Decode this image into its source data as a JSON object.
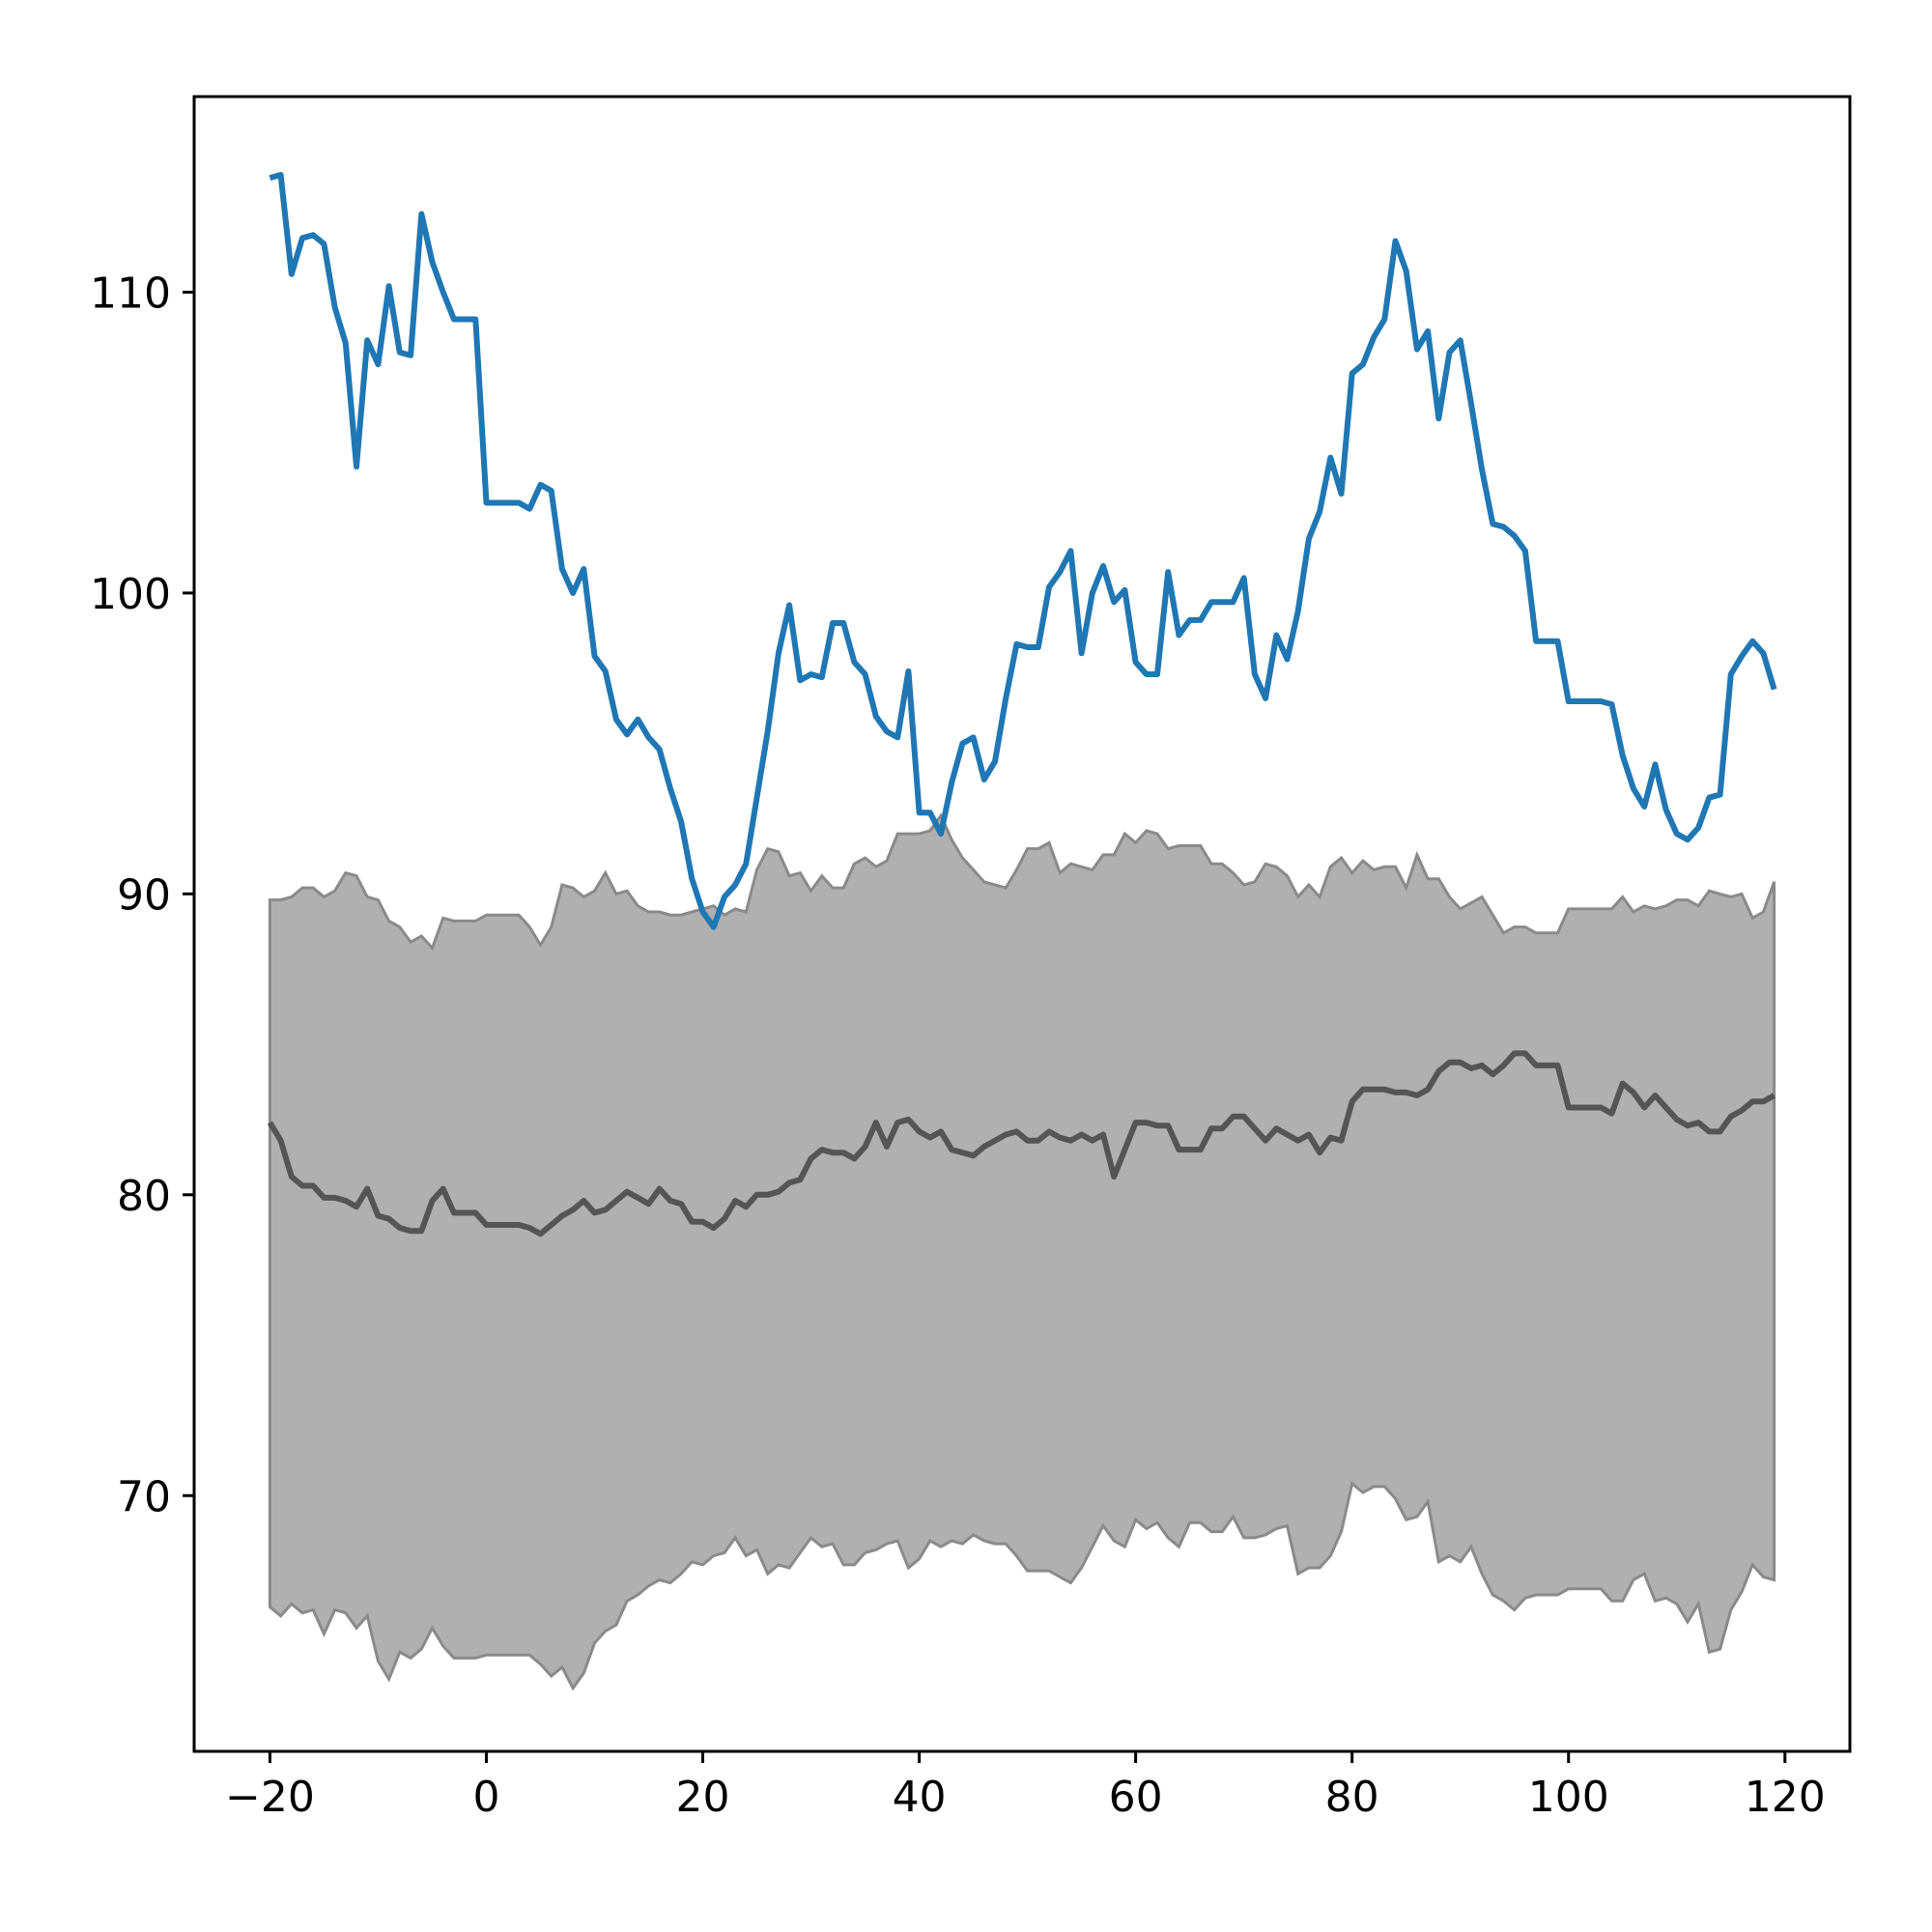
{
  "chart_data": {
    "type": "line",
    "title": "",
    "xlabel": "",
    "ylabel": "",
    "xlim": [
      -27,
      126
    ],
    "ylim": [
      61.5,
      116.5
    ],
    "x_ticks": [
      -20,
      0,
      20,
      40,
      60,
      80,
      100,
      120
    ],
    "x_tick_labels": [
      "−20",
      "0",
      "20",
      "40",
      "60",
      "80",
      "100",
      "120"
    ],
    "y_ticks": [
      70,
      80,
      90,
      100,
      110
    ],
    "y_tick_labels": [
      "70",
      "80",
      "90",
      "100",
      "110"
    ],
    "grid": false,
    "legend": "none",
    "x": [
      -20,
      -19,
      -18,
      -17,
      -16,
      -15,
      -14,
      -13,
      -12,
      -11,
      -10,
      -9,
      -8,
      -7,
      -6,
      -5,
      -4,
      -3,
      -2,
      -1,
      0,
      1,
      2,
      3,
      4,
      5,
      6,
      7,
      8,
      9,
      10,
      11,
      12,
      13,
      14,
      15,
      16,
      17,
      18,
      19,
      20,
      21,
      22,
      23,
      24,
      25,
      26,
      27,
      28,
      29,
      30,
      31,
      32,
      33,
      34,
      35,
      36,
      37,
      38,
      39,
      40,
      41,
      42,
      43,
      44,
      45,
      46,
      47,
      48,
      49,
      50,
      51,
      52,
      53,
      54,
      55,
      56,
      57,
      58,
      59,
      60,
      61,
      62,
      63,
      64,
      65,
      66,
      67,
      68,
      69,
      70,
      71,
      72,
      73,
      74,
      75,
      76,
      77,
      78,
      79,
      80,
      81,
      82,
      83,
      84,
      85,
      86,
      87,
      88,
      89,
      90,
      91,
      92,
      93,
      94,
      95,
      96,
      97,
      98,
      99,
      100,
      101,
      102,
      103,
      104,
      105,
      106,
      107,
      108,
      109,
      110,
      111,
      112,
      113,
      114,
      115,
      116,
      117,
      118,
      119
    ],
    "series": [
      {
        "role": "observed",
        "color": "#1f77b4",
        "values": [
          113.8,
          113.9,
          110.6,
          111.8,
          111.9,
          111.6,
          109.5,
          108.3,
          104.2,
          108.4,
          107.6,
          110.2,
          108.0,
          107.9,
          112.6,
          111.0,
          110.0,
          109.1,
          109.1,
          109.1,
          103.0,
          103.0,
          103.0,
          103.0,
          102.8,
          103.6,
          103.4,
          100.8,
          100.0,
          100.8,
          97.9,
          97.4,
          95.8,
          95.3,
          95.8,
          95.2,
          94.8,
          93.5,
          92.4,
          90.5,
          89.4,
          88.9,
          89.9,
          90.3,
          91.0,
          93.2,
          95.4,
          98.0,
          99.6,
          97.1,
          97.3,
          97.2,
          99.0,
          99.0,
          97.7,
          97.3,
          95.9,
          95.4,
          95.2,
          97.4,
          92.7,
          92.7,
          92.0,
          93.7,
          95.0,
          95.2,
          93.8,
          94.4,
          96.5,
          98.3,
          98.2,
          98.2,
          100.2,
          100.7,
          101.4,
          98.0,
          100.0,
          100.9,
          99.7,
          100.1,
          97.7,
          97.3,
          97.3,
          100.7,
          98.6,
          99.1,
          99.1,
          99.7,
          99.7,
          99.7,
          100.5,
          97.3,
          96.5,
          98.6,
          97.8,
          99.4,
          101.8,
          102.7,
          104.5,
          103.3,
          107.3,
          107.6,
          108.5,
          109.1,
          111.7,
          110.7,
          108.1,
          108.7,
          105.8,
          108.0,
          108.4,
          106.3,
          104.1,
          102.3,
          102.2,
          101.9,
          101.4,
          98.4,
          98.4,
          98.4,
          96.4,
          96.4,
          96.4,
          96.4,
          96.3,
          94.6,
          93.5,
          92.9,
          94.3,
          92.8,
          92.0,
          91.8,
          92.2,
          93.2,
          93.3,
          97.3,
          97.9,
          98.4,
          98.0,
          96.8
        ]
      },
      {
        "role": "center",
        "color": "#555555",
        "values": [
          82.4,
          81.8,
          80.6,
          80.3,
          80.3,
          79.9,
          79.9,
          79.8,
          79.6,
          80.2,
          79.3,
          79.2,
          78.9,
          78.8,
          78.8,
          79.8,
          80.2,
          79.4,
          79.4,
          79.4,
          79.0,
          79.0,
          79.0,
          79.0,
          78.9,
          78.7,
          79.0,
          79.3,
          79.5,
          79.8,
          79.4,
          79.5,
          79.8,
          80.1,
          79.9,
          79.7,
          80.2,
          79.8,
          79.7,
          79.1,
          79.1,
          78.9,
          79.2,
          79.8,
          79.6,
          80.0,
          80.0,
          80.1,
          80.4,
          80.5,
          81.2,
          81.5,
          81.4,
          81.4,
          81.2,
          81.6,
          82.4,
          81.6,
          82.4,
          82.5,
          82.1,
          81.9,
          82.1,
          81.5,
          81.4,
          81.3,
          81.6,
          81.8,
          82.0,
          82.1,
          81.8,
          81.8,
          82.1,
          81.9,
          81.8,
          82.0,
          81.8,
          82.0,
          80.6,
          81.5,
          82.4,
          82.4,
          82.3,
          82.3,
          81.5,
          81.5,
          81.5,
          82.2,
          82.2,
          82.6,
          82.6,
          82.2,
          81.8,
          82.2,
          82.0,
          81.8,
          82.0,
          81.4,
          81.9,
          81.8,
          83.1,
          83.5,
          83.5,
          83.5,
          83.4,
          83.4,
          83.3,
          83.5,
          84.1,
          84.4,
          84.4,
          84.2,
          84.3,
          84.0,
          84.3,
          84.7,
          84.7,
          84.3,
          84.3,
          84.3,
          82.9,
          82.9,
          82.9,
          82.9,
          82.7,
          83.7,
          83.4,
          82.9,
          83.3,
          82.9,
          82.5,
          82.3,
          82.4,
          82.1,
          82.1,
          82.6,
          82.8,
          83.1,
          83.1,
          83.3
        ]
      }
    ],
    "band": {
      "color": "#b0b0b0",
      "edge_color": "#8a8a8a",
      "upper": [
        89.8,
        89.8,
        89.9,
        90.2,
        90.2,
        89.9,
        90.1,
        90.7,
        90.6,
        89.9,
        89.8,
        89.1,
        88.9,
        88.4,
        88.6,
        88.2,
        89.2,
        89.1,
        89.1,
        89.1,
        89.3,
        89.3,
        89.3,
        89.3,
        88.9,
        88.3,
        88.9,
        90.3,
        90.2,
        89.9,
        90.1,
        90.7,
        90.0,
        90.1,
        89.6,
        89.4,
        89.4,
        89.3,
        89.3,
        89.4,
        89.5,
        89.6,
        89.3,
        89.5,
        89.4,
        90.8,
        91.5,
        91.4,
        90.6,
        90.7,
        90.1,
        90.6,
        90.2,
        90.2,
        91.0,
        91.2,
        90.9,
        91.1,
        92.0,
        92.0,
        92.0,
        92.1,
        92.6,
        91.8,
        91.2,
        90.8,
        90.4,
        90.3,
        90.2,
        90.8,
        91.5,
        91.5,
        91.7,
        90.7,
        91.0,
        90.9,
        90.8,
        91.3,
        91.3,
        92.0,
        91.7,
        92.1,
        92.0,
        91.5,
        91.6,
        91.6,
        91.6,
        91.0,
        91.0,
        90.7,
        90.3,
        90.4,
        91.0,
        90.9,
        90.6,
        89.9,
        90.3,
        89.9,
        90.9,
        91.2,
        90.7,
        91.1,
        90.8,
        90.9,
        90.9,
        90.2,
        91.3,
        90.5,
        90.5,
        89.9,
        89.5,
        89.7,
        89.9,
        89.3,
        88.7,
        88.9,
        88.9,
        88.7,
        88.7,
        88.7,
        89.5,
        89.5,
        89.5,
        89.5,
        89.5,
        89.9,
        89.4,
        89.6,
        89.5,
        89.6,
        89.8,
        89.8,
        89.6,
        90.1,
        90.0,
        89.9,
        90.0,
        89.2,
        89.4,
        90.4
      ],
      "lower": [
        66.3,
        66.0,
        66.4,
        66.1,
        66.2,
        65.4,
        66.2,
        66.1,
        65.6,
        66.0,
        64.5,
        63.9,
        64.8,
        64.6,
        64.9,
        65.6,
        65.0,
        64.6,
        64.6,
        64.6,
        64.7,
        64.7,
        64.7,
        64.7,
        64.7,
        64.4,
        64.0,
        64.3,
        63.6,
        64.1,
        65.1,
        65.5,
        65.7,
        66.5,
        66.7,
        67.0,
        67.2,
        67.1,
        67.4,
        67.8,
        67.7,
        68.0,
        68.1,
        68.6,
        68.0,
        68.2,
        67.4,
        67.7,
        67.6,
        68.1,
        68.6,
        68.3,
        68.4,
        67.7,
        67.7,
        68.1,
        68.2,
        68.4,
        68.5,
        67.6,
        67.9,
        68.5,
        68.3,
        68.5,
        68.4,
        68.7,
        68.5,
        68.4,
        68.4,
        68.0,
        67.5,
        67.5,
        67.5,
        67.3,
        67.1,
        67.6,
        68.3,
        69.0,
        68.5,
        68.3,
        69.2,
        68.9,
        69.1,
        68.6,
        68.3,
        69.1,
        69.1,
        68.8,
        68.8,
        69.3,
        68.6,
        68.6,
        68.7,
        68.9,
        69.0,
        67.4,
        67.6,
        67.6,
        68.0,
        68.8,
        70.4,
        70.1,
        70.3,
        70.3,
        69.9,
        69.2,
        69.3,
        69.8,
        67.8,
        68.0,
        67.8,
        68.3,
        67.4,
        66.7,
        66.5,
        66.2,
        66.6,
        66.7,
        66.7,
        66.7,
        66.9,
        66.9,
        66.9,
        66.9,
        66.5,
        66.5,
        67.2,
        67.4,
        66.5,
        66.6,
        66.4,
        65.8,
        66.4,
        64.8,
        64.9,
        66.2,
        66.8,
        67.7,
        67.3,
        67.2
      ]
    }
  }
}
